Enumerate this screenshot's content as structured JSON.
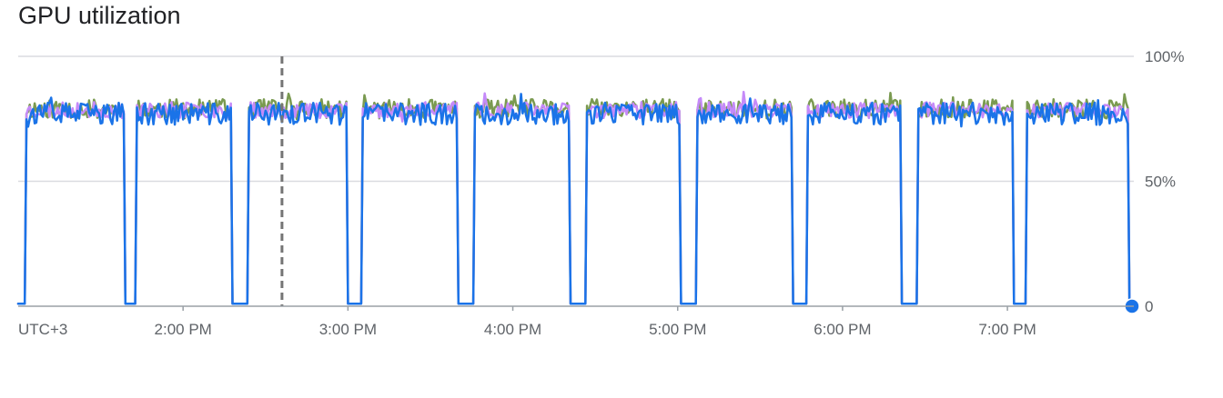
{
  "title": "GPU utilization",
  "chart_data": {
    "type": "line",
    "title": "GPU utilization",
    "timezone_label": "UTC+3",
    "x_unit": "minutes",
    "x_range": [
      780,
      1186
    ],
    "x_ticks": [
      {
        "value": 840,
        "label": "2:00 PM"
      },
      {
        "value": 900,
        "label": "3:00 PM"
      },
      {
        "value": 960,
        "label": "4:00 PM"
      },
      {
        "value": 1020,
        "label": "5:00 PM"
      },
      {
        "value": 1080,
        "label": "6:00 PM"
      },
      {
        "value": 1140,
        "label": "7:00 PM"
      }
    ],
    "y_range": [
      0,
      100
    ],
    "y_ticks": [
      {
        "value": 0,
        "label": "0"
      },
      {
        "value": 50,
        "label": "50%"
      },
      {
        "value": 100,
        "label": "100%"
      }
    ],
    "y_axis_position": "right",
    "grid": true,
    "cursor_x": 876,
    "active_segments": [
      [
        783,
        819
      ],
      [
        823,
        858
      ],
      [
        864,
        900
      ],
      [
        905,
        940
      ],
      [
        946,
        981
      ],
      [
        987,
        1021
      ],
      [
        1027,
        1062
      ],
      [
        1067,
        1101
      ],
      [
        1107,
        1142
      ],
      [
        1147,
        1184
      ]
    ],
    "series": [
      {
        "color": "#7a9a50",
        "active_level": 79,
        "jitter": 2.4,
        "seed": 11
      },
      {
        "color": "#c58af9",
        "active_level": 78.5,
        "jitter": 2.0,
        "seed": 23
      },
      {
        "color": "#1a73e8",
        "active_level": 77,
        "jitter": 2.8,
        "seed": 37
      }
    ],
    "idle_level": 1,
    "end_point": {
      "series": 2,
      "x": 1186,
      "y": 0
    }
  }
}
